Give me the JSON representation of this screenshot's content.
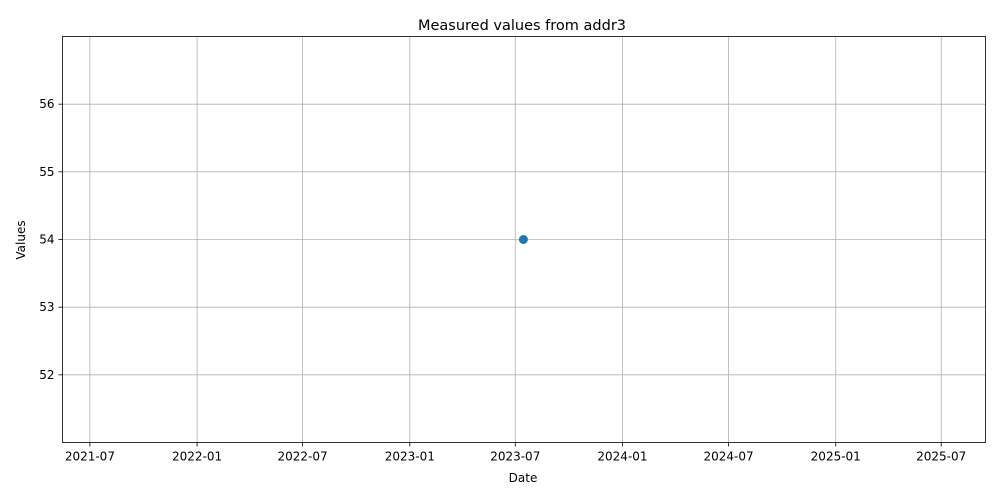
{
  "chart_data": {
    "type": "scatter",
    "title": "Measured values from addr3",
    "xlabel": "Date",
    "ylabel": "Values",
    "x_type": "date",
    "xlim": [
      "2021-05-15",
      "2025-09-15"
    ],
    "ylim": [
      51.0,
      57.0
    ],
    "grid": true,
    "x_ticks": [
      "2021-07-01",
      "2022-01-01",
      "2022-07-01",
      "2023-01-01",
      "2023-07-01",
      "2024-01-01",
      "2024-07-01",
      "2025-01-01",
      "2025-07-01"
    ],
    "x_tick_labels": [
      "2021-07",
      "2022-01",
      "2022-07",
      "2023-01",
      "2023-07",
      "2024-01",
      "2024-07",
      "2025-01",
      "2025-07"
    ],
    "y_ticks": [
      52,
      53,
      54,
      55,
      56
    ],
    "series": [
      {
        "color": "#1f77b4",
        "marker": "circle",
        "points": [
          {
            "x": "2023-07-15",
            "y": 54
          }
        ]
      }
    ]
  }
}
